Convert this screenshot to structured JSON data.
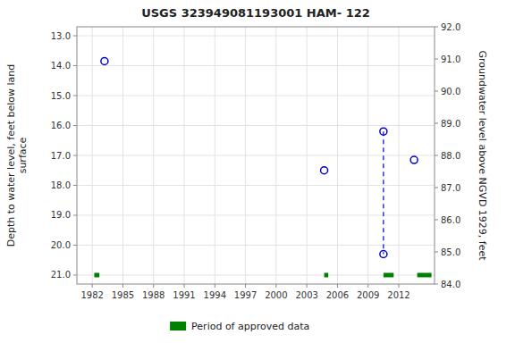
{
  "chart_data": {
    "type": "scatter",
    "title": "USGS 323949081193001 HAM- 122",
    "xlim": [
      1980.5,
      2015.5
    ],
    "xticks": [
      1982,
      1985,
      1988,
      1991,
      1994,
      1997,
      2000,
      2003,
      2006,
      2009,
      2012
    ],
    "ylim": [
      21.3,
      12.7
    ],
    "yticks": [
      {
        "value": 13,
        "label": "13.0"
      },
      {
        "value": 14,
        "label": "14.0"
      },
      {
        "value": 15,
        "label": "15.0"
      },
      {
        "value": 16,
        "label": "16.0"
      },
      {
        "value": 17,
        "label": "17.0"
      },
      {
        "value": 18,
        "label": "18.0"
      },
      {
        "value": 19,
        "label": "19.0"
      },
      {
        "value": 20,
        "label": "20.0"
      },
      {
        "value": 21,
        "label": "21.0"
      }
    ],
    "y2lim": [
      84.0,
      92.0
    ],
    "y2ticks": [
      {
        "value": 84,
        "label": "84.0"
      },
      {
        "value": 85,
        "label": "85.0"
      },
      {
        "value": 86,
        "label": "86.0"
      },
      {
        "value": 87,
        "label": "87.0"
      },
      {
        "value": 88,
        "label": "88.0"
      },
      {
        "value": 89,
        "label": "89.0"
      },
      {
        "value": 90,
        "label": "90.0"
      },
      {
        "value": 91,
        "label": "91.0"
      },
      {
        "value": 92,
        "label": "92.0"
      }
    ],
    "ylabel": "Depth to water level, feet below land\nsurface",
    "y2label": "Groundwater level above NGVD 1929, feet",
    "grid": true,
    "legend": "bottom",
    "series": [
      {
        "type": "scatter",
        "color": "#0000cc",
        "marker": "circle",
        "x": [
          1983.2,
          2004.7,
          2013.5,
          2010.5,
          2010.5
        ],
        "values": [
          13.85,
          17.5,
          17.15,
          16.2,
          20.3
        ]
      },
      {
        "type": "line",
        "color": "#0000cc",
        "line_style": "dashed",
        "x": [
          2010.5,
          2010.5
        ],
        "values": [
          16.2,
          20.3
        ]
      },
      {
        "type": "segment",
        "name": "Period of approved data",
        "color": "#008000",
        "x_start": [
          1982.2,
          2004.7,
          2010.5,
          2013.8
        ],
        "x_end": [
          1982.7,
          2005.1,
          2011.5,
          2015.2
        ],
        "values": [
          21.0,
          21.0,
          21.0,
          21.0
        ]
      }
    ]
  }
}
